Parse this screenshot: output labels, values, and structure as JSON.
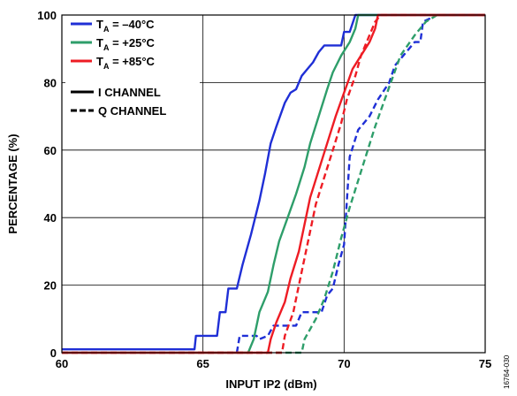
{
  "chart_data": {
    "type": "line",
    "xlabel": "INPUT IP2 (dBm)",
    "ylabel": "PERCENTAGE (%)",
    "xlim": [
      60,
      75
    ],
    "ylim": [
      0,
      100
    ],
    "xticks": [
      "60",
      "65",
      "70",
      "75"
    ],
    "yticks": [
      "0",
      "20",
      "40",
      "60",
      "80",
      "100"
    ],
    "grid": true,
    "legend_position": "top-left",
    "legend": {
      "temperatures": [
        {
          "prefix": "T",
          "sub": "A",
          "suffix": " = –40°C",
          "color": "#1f2fd6"
        },
        {
          "prefix": "T",
          "sub": "A",
          "suffix": " = +25°C",
          "color": "#2e9e6a"
        },
        {
          "prefix": "T",
          "sub": "A",
          "suffix": " = +85°C",
          "color": "#ee1c24"
        }
      ],
      "styles": [
        {
          "label": "I CHANNEL",
          "dash": "solid"
        },
        {
          "label": "Q CHANNEL",
          "dash": "dashed"
        }
      ]
    },
    "figure_id": "16764-030",
    "series": [
      {
        "temperature": "–40°C",
        "channel": "I",
        "color": "#1f2fd6",
        "dash": "solid",
        "points": [
          [
            60,
            1
          ],
          [
            64.7,
            1
          ],
          [
            64.75,
            5
          ],
          [
            65.5,
            5
          ],
          [
            65.6,
            12
          ],
          [
            65.8,
            12
          ],
          [
            65.9,
            19
          ],
          [
            66.2,
            19
          ],
          [
            66.4,
            26
          ],
          [
            66.7,
            35
          ],
          [
            67.0,
            45
          ],
          [
            67.2,
            53
          ],
          [
            67.4,
            62
          ],
          [
            67.6,
            67
          ],
          [
            67.9,
            74
          ],
          [
            68.1,
            77
          ],
          [
            68.3,
            78
          ],
          [
            68.5,
            82
          ],
          [
            68.7,
            84
          ],
          [
            68.9,
            86
          ],
          [
            69.1,
            89
          ],
          [
            69.3,
            91
          ],
          [
            69.7,
            91
          ],
          [
            69.9,
            91
          ],
          [
            70.0,
            95
          ],
          [
            70.2,
            95
          ],
          [
            70.4,
            100
          ],
          [
            75,
            100
          ]
        ]
      },
      {
        "temperature": "–40°C",
        "channel": "Q",
        "color": "#1f2fd6",
        "dash": "dashed",
        "points": [
          [
            60,
            0
          ],
          [
            66.2,
            0
          ],
          [
            66.3,
            5
          ],
          [
            66.9,
            5
          ],
          [
            67.0,
            4
          ],
          [
            67.3,
            5
          ],
          [
            67.5,
            8
          ],
          [
            68.3,
            8
          ],
          [
            68.5,
            12
          ],
          [
            69.2,
            12
          ],
          [
            69.4,
            17
          ],
          [
            69.6,
            19
          ],
          [
            69.8,
            26
          ],
          [
            70.0,
            32
          ],
          [
            70.1,
            45
          ],
          [
            70.2,
            58
          ],
          [
            70.5,
            66
          ],
          [
            70.9,
            70
          ],
          [
            71.2,
            75
          ],
          [
            71.6,
            80
          ],
          [
            71.8,
            85
          ],
          [
            72.1,
            88
          ],
          [
            72.5,
            92
          ],
          [
            72.7,
            92
          ],
          [
            72.8,
            98
          ],
          [
            73.3,
            100
          ],
          [
            75,
            100
          ]
        ]
      },
      {
        "temperature": "+25°C",
        "channel": "I",
        "color": "#2e9e6a",
        "dash": "solid",
        "points": [
          [
            60,
            0
          ],
          [
            66.6,
            0
          ],
          [
            66.8,
            4
          ],
          [
            67.0,
            12
          ],
          [
            67.3,
            18
          ],
          [
            67.5,
            26
          ],
          [
            67.7,
            33
          ],
          [
            68.0,
            40
          ],
          [
            68.3,
            47
          ],
          [
            68.6,
            55
          ],
          [
            68.8,
            62
          ],
          [
            69.1,
            70
          ],
          [
            69.4,
            78
          ],
          [
            69.6,
            83
          ],
          [
            69.9,
            88
          ],
          [
            70.2,
            92
          ],
          [
            70.4,
            96
          ],
          [
            70.5,
            100
          ],
          [
            75,
            100
          ]
        ]
      },
      {
        "temperature": "+25°C",
        "channel": "Q",
        "color": "#2e9e6a",
        "dash": "dashed",
        "points": [
          [
            60,
            0
          ],
          [
            68.5,
            0
          ],
          [
            68.6,
            4
          ],
          [
            69.0,
            10
          ],
          [
            69.3,
            16
          ],
          [
            69.6,
            24
          ],
          [
            69.9,
            34
          ],
          [
            70.2,
            43
          ],
          [
            70.5,
            51
          ],
          [
            70.8,
            59
          ],
          [
            71.1,
            67
          ],
          [
            71.4,
            74
          ],
          [
            71.7,
            81
          ],
          [
            72.0,
            88
          ],
          [
            72.5,
            94
          ],
          [
            72.9,
            98
          ],
          [
            73.3,
            100
          ],
          [
            75,
            100
          ]
        ]
      },
      {
        "temperature": "+85°C",
        "channel": "I",
        "color": "#ee1c24",
        "dash": "solid",
        "points": [
          [
            60,
            0
          ],
          [
            67.3,
            0
          ],
          [
            67.4,
            4
          ],
          [
            67.6,
            9
          ],
          [
            67.9,
            15
          ],
          [
            68.1,
            22
          ],
          [
            68.4,
            30
          ],
          [
            68.6,
            38
          ],
          [
            68.8,
            46
          ],
          [
            69.1,
            54
          ],
          [
            69.4,
            62
          ],
          [
            69.7,
            70
          ],
          [
            70.0,
            77
          ],
          [
            70.3,
            84
          ],
          [
            70.6,
            88
          ],
          [
            70.9,
            92
          ],
          [
            71.1,
            96
          ],
          [
            71.2,
            100
          ],
          [
            75,
            100
          ]
        ]
      },
      {
        "temperature": "+85°C",
        "channel": "Q",
        "color": "#ee1c24",
        "dash": "dashed",
        "points": [
          [
            60,
            0
          ],
          [
            67.8,
            0
          ],
          [
            67.9,
            5
          ],
          [
            68.2,
            12
          ],
          [
            68.4,
            20
          ],
          [
            68.6,
            28
          ],
          [
            68.8,
            36
          ],
          [
            69.0,
            44
          ],
          [
            69.3,
            52
          ],
          [
            69.6,
            60
          ],
          [
            69.9,
            68
          ],
          [
            70.1,
            75
          ],
          [
            70.4,
            82
          ],
          [
            70.6,
            88
          ],
          [
            70.9,
            94
          ],
          [
            71.1,
            98
          ],
          [
            71.3,
            100
          ],
          [
            75,
            100
          ]
        ]
      }
    ]
  }
}
